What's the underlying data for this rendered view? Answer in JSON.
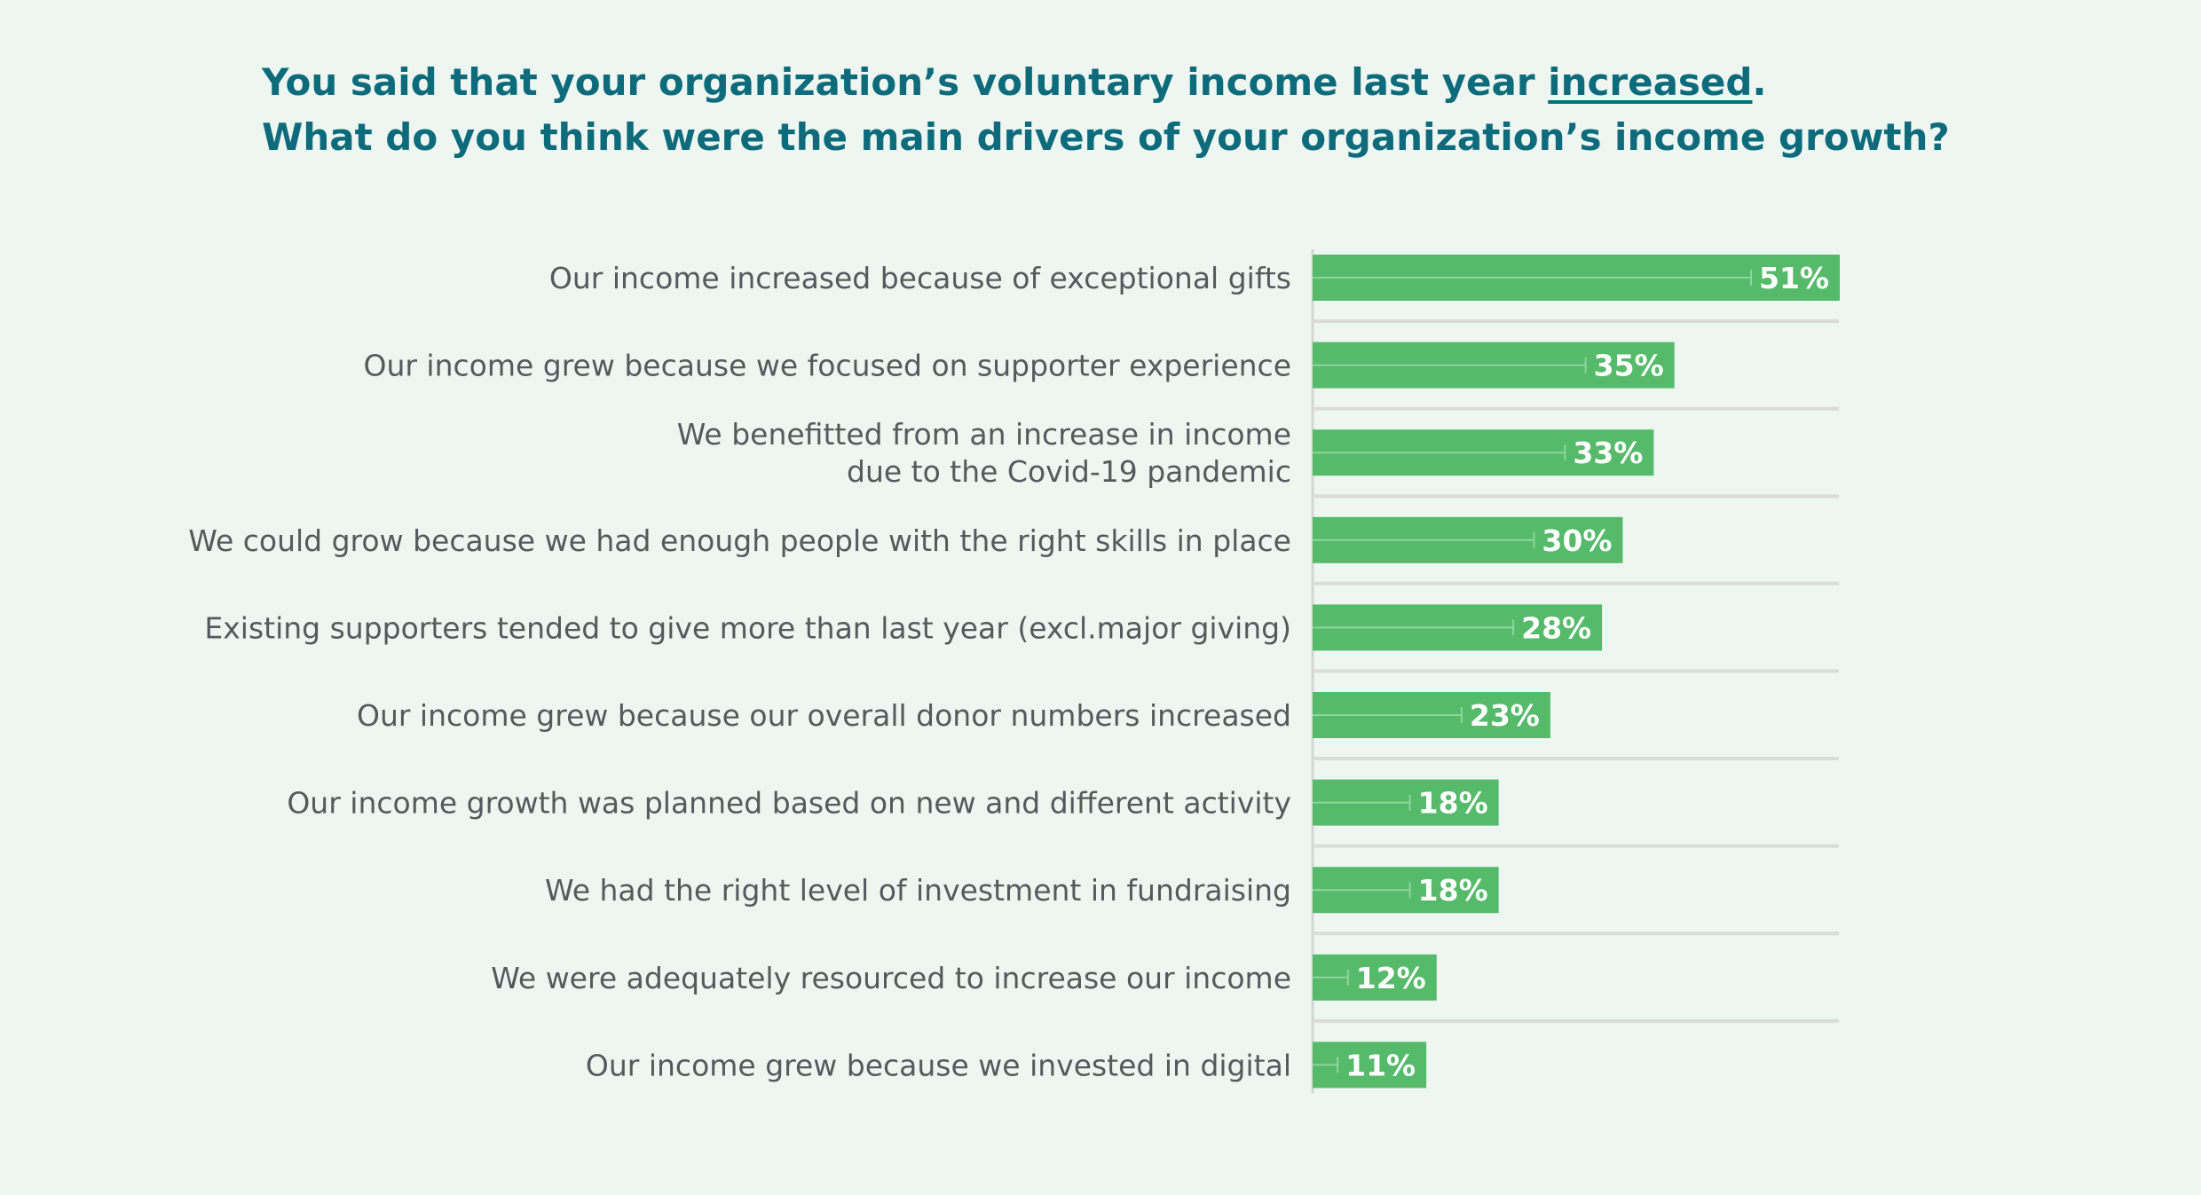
{
  "title": {
    "line1_before": "You said that your organization’s voluntary income last year ",
    "line1_emphasis": "increased",
    "line1_after": ".",
    "line2": "What do you think were the main drivers of your organization’s income growth?"
  },
  "colors": {
    "background": "#eef6f1",
    "title": "#0d6b7b",
    "bar": "#55bb6a",
    "label": "#555a5c",
    "value_label": "#ffffff",
    "separator": "#d9dcda"
  },
  "chart_data": {
    "type": "bar",
    "orientation": "horizontal",
    "categories": [
      [
        "Our income increased because of exceptional gifts"
      ],
      [
        "Our income grew because we focused on supporter experience"
      ],
      [
        "We benefitted from an increase in income",
        "due to the Covid-19 pandemic"
      ],
      [
        "We could grow because we had enough people with the right skills in place"
      ],
      [
        "Existing supporters tended to give more than last year (excl.major giving)"
      ],
      [
        "Our income grew because our overall donor numbers increased"
      ],
      [
        "Our income growth was planned based on new and different activity"
      ],
      [
        "We had the right level of investment in fundraising"
      ],
      [
        "We were adequately resourced to increase our income"
      ],
      [
        "Our income grew because we invested in digital"
      ]
    ],
    "values": [
      51,
      35,
      33,
      30,
      28,
      23,
      18,
      18,
      12,
      11
    ],
    "value_labels": [
      "51%",
      "35%",
      "33%",
      "30%",
      "28%",
      "23%",
      "18%",
      "18%",
      "12%",
      "11%"
    ],
    "unit": "%",
    "xlim": [
      0,
      51
    ],
    "grid": false,
    "legend": "none"
  }
}
